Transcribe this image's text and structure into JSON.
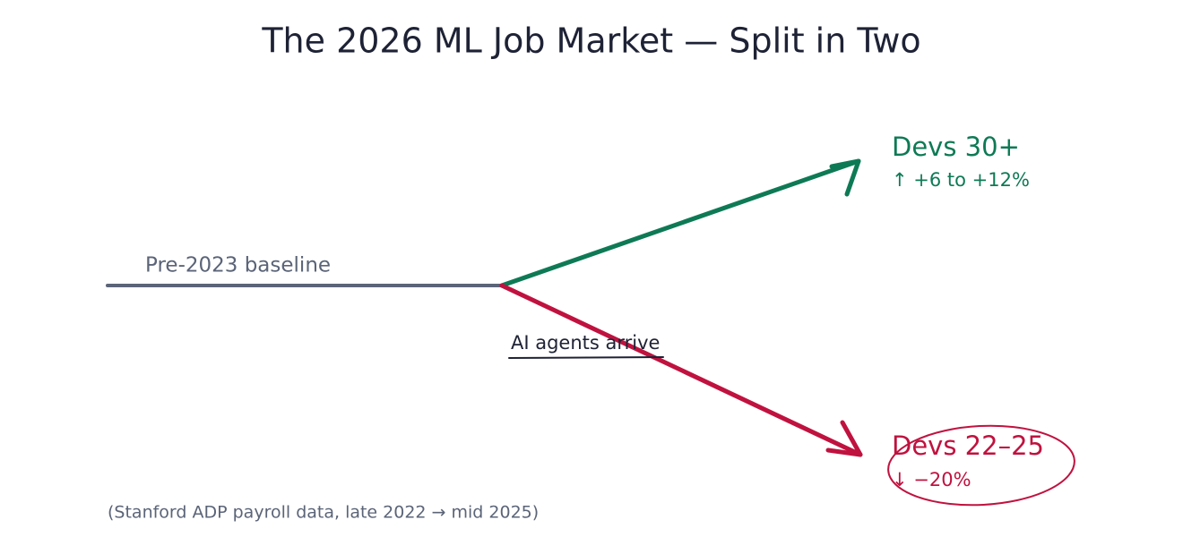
{
  "title": "The 2026 ML Job Market — Split in Two",
  "baseline": {
    "label": "Pre-2023 baseline"
  },
  "event": {
    "label": "AI agents arrive"
  },
  "branches": [
    {
      "label": "Devs 30+",
      "change": "↑ +6 to +12%"
    },
    {
      "label": "Devs 22–25",
      "change": "↓ −20%"
    }
  ],
  "caption": "(Stanford ADP payroll data, late 2022 → mid 2025)"
}
